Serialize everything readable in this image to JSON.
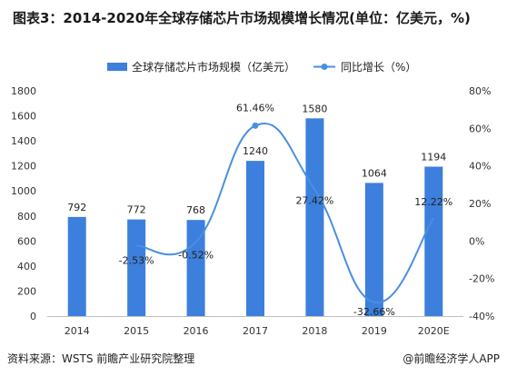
{
  "title": "图表3：2014-2020年全球存储芯片市场规模增长情况(单位：亿美元，%)",
  "footer": {
    "source": "资料来源：WSTS 前瞻产业研究院整理",
    "brand": "@前瞻经济学人APP"
  },
  "colors": {
    "bar": "#3d7fdc",
    "line": "#4a8fe0",
    "point": "#4a8fe0"
  },
  "chart_data": {
    "type": "bar+line",
    "categories": [
      "2014",
      "2015",
      "2016",
      "2017",
      "2018",
      "2019",
      "2020E"
    ],
    "series": [
      {
        "name": "全球存储芯片市场规模（亿美元）",
        "type": "bar",
        "axis": "left",
        "values": [
          792,
          772,
          768,
          1240,
          1580,
          1064,
          1194
        ],
        "labels": [
          "792",
          "772",
          "768",
          "1240",
          "1580",
          "1064",
          "1194"
        ]
      },
      {
        "name": "同比增长（%）",
        "type": "line",
        "axis": "right",
        "smooth": true,
        "values": [
          null,
          -2.53,
          -0.52,
          61.46,
          27.42,
          -32.66,
          12.22
        ],
        "labels": [
          "",
          "-2.53%",
          "-0.52%",
          "61.46%",
          "27.42%",
          "-32.66%",
          "12.22%"
        ]
      }
    ],
    "y_left": {
      "min": 0,
      "max": 1800,
      "ticks": [
        0,
        200,
        400,
        600,
        800,
        1000,
        1200,
        1400,
        1600,
        1800
      ],
      "tick_labels": [
        "0",
        "200",
        "400",
        "600",
        "800",
        "1000",
        "1200",
        "1400",
        "1600",
        "1800"
      ]
    },
    "y_right": {
      "min": -40,
      "max": 80,
      "ticks": [
        -40,
        -20,
        0,
        20,
        40,
        60,
        80
      ],
      "tick_labels": [
        "-40%",
        "-20%",
        "0%",
        "20%",
        "40%",
        "60%",
        "80%"
      ]
    },
    "grid": false,
    "legend": "top"
  }
}
